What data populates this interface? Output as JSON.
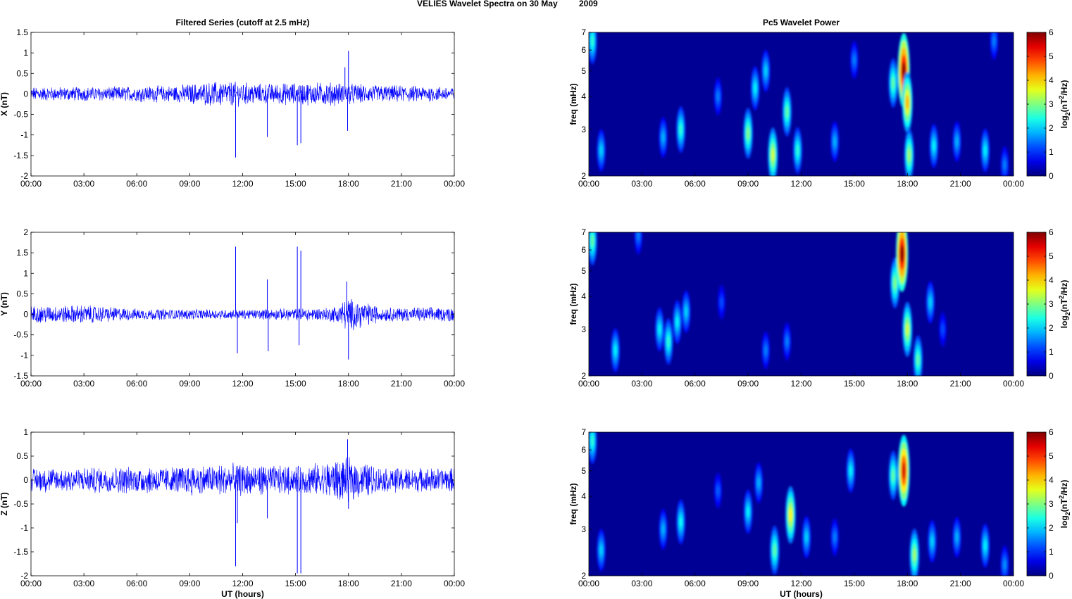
{
  "figure": {
    "title_left": "VELIES Wavelet Spectra on 30 May",
    "title_right": "2009"
  },
  "chart_data": [
    {
      "type": "line",
      "title": "Filtered Series (cutoff at 2.5 mHz)",
      "xlabel": "",
      "ylabel": "X (nT)",
      "x_ticks": [
        "00:00",
        "03:00",
        "06:00",
        "09:00",
        "12:00",
        "15:00",
        "18:00",
        "21:00",
        "00:00"
      ],
      "xlim_hours": [
        0,
        24
      ],
      "ylim": [
        -2,
        1.5
      ],
      "y_ticks": [
        "-2",
        "-1.5",
        "-1",
        "-0.5",
        "0",
        "0.5",
        "1",
        "1.5"
      ],
      "y_tick_values": [
        -2,
        -1.5,
        -1,
        -0.5,
        0,
        0.5,
        1,
        1.5
      ],
      "series": [
        {
          "values_note_color": "#0000ff"
        }
      ],
      "noise_envelope": [
        [
          0,
          0.15
        ],
        [
          4,
          0.15
        ],
        [
          8,
          0.18
        ],
        [
          11,
          0.28
        ],
        [
          13,
          0.22
        ],
        [
          17,
          0.25
        ],
        [
          19,
          0.2
        ],
        [
          24,
          0.15
        ]
      ],
      "spikes_hours_nT": [
        [
          11.6,
          -1.55
        ],
        [
          13.4,
          -1.05
        ],
        [
          15.1,
          -1.25
        ],
        [
          15.3,
          -1.2
        ],
        [
          17.8,
          0.65
        ],
        [
          18.0,
          1.05
        ],
        [
          17.95,
          -0.9
        ]
      ]
    },
    {
      "type": "line",
      "title": "",
      "xlabel": "",
      "ylabel": "Y (nT)",
      "x_ticks": [
        "00:00",
        "03:00",
        "06:00",
        "09:00",
        "12:00",
        "15:00",
        "18:00",
        "21:00",
        "00:00"
      ],
      "xlim_hours": [
        0,
        24
      ],
      "ylim": [
        -1.5,
        2
      ],
      "y_ticks": [
        "-1.5",
        "-1",
        "-0.5",
        "0",
        "0.5",
        "1",
        "1.5",
        "2"
      ],
      "y_tick_values": [
        -1.5,
        -1,
        -0.5,
        0,
        0.5,
        1,
        1.5,
        2
      ],
      "series": [
        {
          "values_note_color": "#0000ff"
        }
      ],
      "noise_envelope": [
        [
          0,
          0.18
        ],
        [
          3,
          0.2
        ],
        [
          6,
          0.12
        ],
        [
          12,
          0.1
        ],
        [
          17,
          0.15
        ],
        [
          18,
          0.35
        ],
        [
          20,
          0.15
        ],
        [
          24,
          0.15
        ]
      ],
      "spikes_hours_nT": [
        [
          11.6,
          1.65
        ],
        [
          11.7,
          -0.95
        ],
        [
          13.4,
          0.85
        ],
        [
          13.45,
          -0.9
        ],
        [
          15.1,
          1.65
        ],
        [
          15.3,
          1.55
        ],
        [
          15.2,
          -0.75
        ],
        [
          17.9,
          0.8
        ],
        [
          18.0,
          -1.1
        ]
      ]
    },
    {
      "type": "line",
      "title": "",
      "xlabel": "UT (hours)",
      "ylabel": "Z (nT)",
      "x_ticks": [
        "00:00",
        "03:00",
        "06:00",
        "09:00",
        "12:00",
        "15:00",
        "18:00",
        "21:00",
        "00:00"
      ],
      "xlim_hours": [
        0,
        24
      ],
      "ylim": [
        -2,
        1
      ],
      "y_ticks": [
        "-2",
        "-1.5",
        "-1",
        "-0.5",
        "0",
        "0.5",
        "1"
      ],
      "y_tick_values": [
        -2,
        -1.5,
        -1,
        -0.5,
        0,
        0.5,
        1
      ],
      "series": [
        {
          "values_note_color": "#0000ff"
        }
      ],
      "noise_envelope": [
        [
          0,
          0.22
        ],
        [
          8,
          0.25
        ],
        [
          11,
          0.3
        ],
        [
          15,
          0.25
        ],
        [
          18,
          0.4
        ],
        [
          20,
          0.22
        ],
        [
          24,
          0.22
        ]
      ],
      "spikes_hours_nT": [
        [
          11.6,
          -1.8
        ],
        [
          11.7,
          -0.9
        ],
        [
          13.4,
          -0.8
        ],
        [
          15.1,
          -1.95
        ],
        [
          15.3,
          -1.95
        ],
        [
          17.95,
          0.85
        ],
        [
          18.0,
          -0.6
        ]
      ]
    },
    {
      "type": "heatmap",
      "title": "Pc5 Wavelet Power",
      "xlabel": "",
      "ylabel": "freq (mHz)",
      "x_ticks": [
        "00:00",
        "03:00",
        "06:00",
        "09:00",
        "12:00",
        "15:00",
        "18:00",
        "21:00",
        "00:00"
      ],
      "xlim_hours": [
        0,
        24
      ],
      "y_ticks": [
        "2",
        "3",
        "4",
        "5",
        "6",
        "7"
      ],
      "y_tick_values": [
        2,
        3,
        4,
        5,
        6,
        7
      ],
      "ylim_mHz": [
        2,
        7
      ],
      "y_scale": "log",
      "colorbar_label": "log2(nT2/Hz)",
      "colorbar_ticks": [
        "0",
        "1",
        "2",
        "3",
        "4",
        "5",
        "6"
      ],
      "clim": [
        0,
        6
      ],
      "blobs_hour_mHz_power": [
        [
          0.2,
          6.5,
          2.5
        ],
        [
          0.7,
          2.5,
          2.0
        ],
        [
          4.2,
          2.8,
          1.8
        ],
        [
          5.2,
          3.0,
          2.5
        ],
        [
          7.3,
          4.0,
          1.5
        ],
        [
          9.0,
          2.9,
          3.0
        ],
        [
          9.4,
          4.3,
          2.2
        ],
        [
          10.4,
          2.4,
          3.5
        ],
        [
          10.0,
          5.0,
          2.0
        ],
        [
          11.2,
          3.5,
          2.8
        ],
        [
          11.8,
          2.5,
          2.5
        ],
        [
          13.9,
          2.7,
          1.8
        ],
        [
          15.0,
          5.5,
          1.5
        ],
        [
          17.2,
          4.5,
          2.8
        ],
        [
          17.8,
          5.0,
          6.0
        ],
        [
          18.0,
          3.8,
          4.2
        ],
        [
          18.1,
          2.4,
          3.2
        ],
        [
          19.5,
          2.6,
          2.2
        ],
        [
          20.8,
          2.7,
          1.8
        ],
        [
          22.4,
          2.5,
          2.2
        ],
        [
          22.9,
          6.5,
          1.5
        ],
        [
          23.5,
          2.2,
          1.5
        ]
      ]
    },
    {
      "type": "heatmap",
      "title": "",
      "xlabel": "",
      "ylabel": "freq (mHz)",
      "x_ticks": [
        "00:00",
        "03:00",
        "06:00",
        "09:00",
        "12:00",
        "15:00",
        "18:00",
        "21:00",
        "00:00"
      ],
      "xlim_hours": [
        0,
        24
      ],
      "y_ticks": [
        "2",
        "3",
        "4",
        "5",
        "6",
        "7"
      ],
      "y_tick_values": [
        2,
        3,
        4,
        5,
        6,
        7
      ],
      "ylim_mHz": [
        2,
        7
      ],
      "y_scale": "log",
      "colorbar_label": "log2(nT2/Hz)",
      "colorbar_ticks": [
        "0",
        "1",
        "2",
        "3",
        "4",
        "5",
        "6"
      ],
      "clim": [
        0,
        6
      ],
      "blobs_hour_mHz_power": [
        [
          0.2,
          6.5,
          2.8
        ],
        [
          1.5,
          2.5,
          2.2
        ],
        [
          2.8,
          6.8,
          1.5
        ],
        [
          4.0,
          3.0,
          2.2
        ],
        [
          4.5,
          2.7,
          2.5
        ],
        [
          5.0,
          3.2,
          2.2
        ],
        [
          5.5,
          3.5,
          2.0
        ],
        [
          7.5,
          3.8,
          1.2
        ],
        [
          10.0,
          2.5,
          1.5
        ],
        [
          11.2,
          2.7,
          1.5
        ],
        [
          17.3,
          4.5,
          3.0
        ],
        [
          17.7,
          5.8,
          6.0
        ],
        [
          18.0,
          3.0,
          3.5
        ],
        [
          18.6,
          2.3,
          2.8
        ],
        [
          19.3,
          3.8,
          2.0
        ],
        [
          20.0,
          3.0,
          1.2
        ]
      ]
    },
    {
      "type": "heatmap",
      "title": "",
      "xlabel": "UT (hours)",
      "ylabel": "freq (mHz)",
      "x_ticks": [
        "00:00",
        "03:00",
        "06:00",
        "09:00",
        "12:00",
        "15:00",
        "18:00",
        "21:00",
        "00:00"
      ],
      "xlim_hours": [
        0,
        24
      ],
      "y_ticks": [
        "2",
        "3",
        "4",
        "5",
        "6",
        "7"
      ],
      "y_tick_values": [
        2,
        3,
        4,
        5,
        6,
        7
      ],
      "ylim_mHz": [
        2,
        7
      ],
      "y_scale": "log",
      "colorbar_label": "log2(nT2/Hz)",
      "colorbar_ticks": [
        "0",
        "1",
        "2",
        "3",
        "4",
        "5",
        "6"
      ],
      "clim": [
        0,
        6
      ],
      "blobs_hour_mHz_power": [
        [
          0.2,
          6.5,
          2.5
        ],
        [
          0.7,
          2.5,
          2.0
        ],
        [
          4.2,
          3.0,
          1.8
        ],
        [
          5.2,
          3.2,
          2.3
        ],
        [
          7.3,
          4.2,
          1.3
        ],
        [
          9.0,
          3.5,
          2.2
        ],
        [
          9.6,
          4.5,
          1.8
        ],
        [
          10.5,
          2.5,
          2.8
        ],
        [
          11.4,
          3.4,
          3.8
        ],
        [
          12.3,
          2.8,
          2.0
        ],
        [
          13.9,
          2.8,
          1.5
        ],
        [
          14.8,
          5.0,
          2.2
        ],
        [
          17.2,
          4.8,
          2.8
        ],
        [
          17.8,
          5.0,
          5.5
        ],
        [
          18.4,
          2.4,
          3.2
        ],
        [
          19.4,
          2.7,
          2.0
        ],
        [
          20.8,
          2.8,
          1.8
        ],
        [
          22.4,
          2.6,
          2.2
        ],
        [
          23.5,
          2.2,
          1.6
        ]
      ]
    }
  ]
}
